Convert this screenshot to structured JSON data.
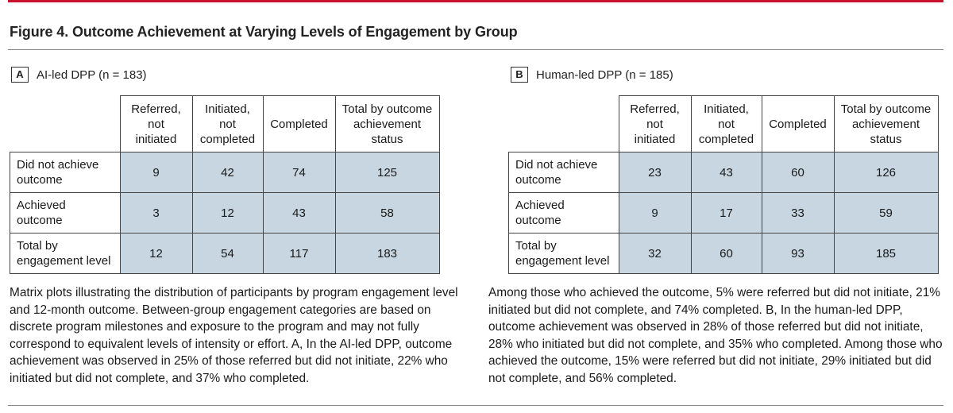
{
  "figure": {
    "title": "Figure 4. Outcome Achievement at Varying Levels of Engagement by Group",
    "accent_color": "#c8102e",
    "cell_color": "#c7d6e0"
  },
  "panelA": {
    "letter": "A",
    "label": "AI-led DPP (n = 183)",
    "columns": [
      "Referred, not initiated",
      "Initiated, not completed",
      "Completed",
      "Total by outcome achievement status"
    ],
    "column_lines": [
      [
        "Referred,",
        "not",
        "initiated"
      ],
      [
        "Initiated,",
        "not",
        "completed"
      ],
      [
        "Completed"
      ],
      [
        "Total by outcome",
        "achievement",
        "status"
      ]
    ],
    "rows": [
      {
        "label_lines": [
          "Did not achieve",
          "outcome"
        ],
        "values": [
          "9",
          "42",
          "74",
          "125"
        ]
      },
      {
        "label_lines": [
          "Achieved",
          "outcome"
        ],
        "values": [
          "3",
          "12",
          "43",
          "58"
        ]
      },
      {
        "label_lines": [
          "Total by",
          "engagement level"
        ],
        "values": [
          "12",
          "54",
          "117",
          "183"
        ]
      }
    ]
  },
  "panelB": {
    "letter": "B",
    "label": "Human-led DPP (n = 185)",
    "column_lines": [
      [
        "Referred,",
        "not",
        "initiated"
      ],
      [
        "Initiated,",
        "not",
        "completed"
      ],
      [
        "Completed"
      ],
      [
        "Total by outcome",
        "achievement",
        "status"
      ]
    ],
    "rows": [
      {
        "label_lines": [
          "Did not achieve",
          "outcome"
        ],
        "values": [
          "23",
          "43",
          "60",
          "126"
        ]
      },
      {
        "label_lines": [
          "Achieved",
          "outcome"
        ],
        "values": [
          "9",
          "17",
          "33",
          "59"
        ]
      },
      {
        "label_lines": [
          "Total by",
          "engagement level"
        ],
        "values": [
          "32",
          "60",
          "93",
          "185"
        ]
      }
    ]
  },
  "caption": {
    "left": "Matrix plots illustrating the distribution of participants by program engagement level and 12-month outcome. Between-group engagement categories are based on discrete program milestones and exposure to the program and may not fully correspond to equivalent levels of intensity or effort. A, In the AI-led DPP, outcome achievement was observed in 25% of those referred but did not initiate, 22% who initiated but did not complete, and 37% who completed.",
    "right": "Among those who achieved the outcome, 5% were referred but did not initiate, 21% initiated but did not complete, and 74% completed. B, In the human-led DPP, outcome achievement was observed in 28% of those referred but did not initiate, 28% who initiated but did not complete, and 35% who completed. Among those who achieved the outcome, 15% were referred but did not initiate, 29% initiated but did not complete, and 56% completed."
  },
  "chart_data": [
    {
      "type": "table",
      "title": "AI-led DPP (n = 183)",
      "columns": [
        "Referred, not initiated",
        "Initiated, not completed",
        "Completed",
        "Total by outcome achievement status"
      ],
      "rows": [
        "Did not achieve outcome",
        "Achieved outcome",
        "Total by engagement level"
      ],
      "values": [
        [
          9,
          42,
          74,
          125
        ],
        [
          3,
          12,
          43,
          58
        ],
        [
          12,
          54,
          117,
          183
        ]
      ]
    },
    {
      "type": "table",
      "title": "Human-led DPP (n = 185)",
      "columns": [
        "Referred, not initiated",
        "Initiated, not completed",
        "Completed",
        "Total by outcome achievement status"
      ],
      "rows": [
        "Did not achieve outcome",
        "Achieved outcome",
        "Total by engagement level"
      ],
      "values": [
        [
          23,
          43,
          60,
          126
        ],
        [
          9,
          17,
          33,
          59
        ],
        [
          32,
          60,
          93,
          185
        ]
      ]
    }
  ]
}
